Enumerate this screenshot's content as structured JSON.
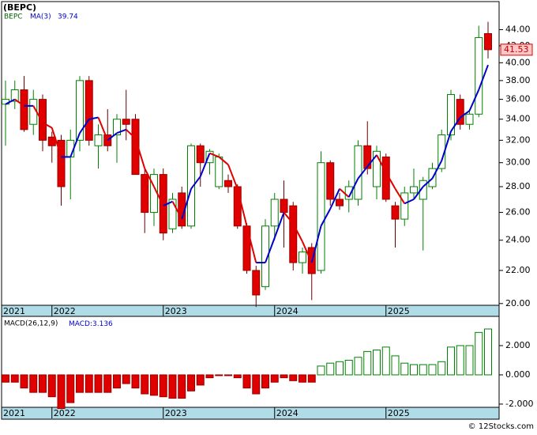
{
  "ticker_title": "(BEPC)",
  "copyright": "© 12Stocks.com",
  "chart_data": [
    {
      "type": "candlestick",
      "categories": [
        "2021",
        null,
        null,
        null,
        null,
        "2022",
        null,
        null,
        null,
        null,
        null,
        null,
        null,
        null,
        null,
        null,
        null,
        "2023",
        null,
        null,
        null,
        null,
        null,
        null,
        null,
        null,
        null,
        null,
        null,
        "2024",
        null,
        null,
        null,
        null,
        null,
        null,
        null,
        null,
        null,
        null,
        null,
        "2025",
        null,
        null,
        null,
        null,
        null,
        null,
        null,
        null,
        null,
        null,
        null
      ],
      "series": [
        {
          "name": "BEPC",
          "up_color": "#008000",
          "down_color": "#e00000",
          "open": [
            35.5,
            35.8,
            37,
            33.5,
            36,
            32.3,
            32,
            30.5,
            32,
            38,
            31.5,
            32.5,
            32.5,
            34,
            34,
            29,
            26,
            29,
            24.8,
            27.5,
            25,
            31.5,
            30,
            28,
            28.5,
            28,
            25,
            22,
            21,
            25,
            27,
            26.5,
            22.5,
            23.5,
            22,
            30,
            27,
            27,
            27,
            31.5,
            28,
            30.5,
            26.5,
            25.5,
            27.5,
            27,
            28,
            29.5,
            32.5,
            36,
            33.5,
            34.5,
            43.5
          ],
          "high": [
            38,
            38,
            38.5,
            37,
            36.5,
            32.8,
            32.5,
            33,
            38.5,
            38.5,
            33.5,
            35,
            34.5,
            37,
            34.5,
            29.5,
            29.5,
            29.5,
            27.5,
            28,
            31.7,
            31.7,
            31.2,
            30.8,
            29,
            28.2,
            25.2,
            22.3,
            25.5,
            27.5,
            28.5,
            26.8,
            23.5,
            23.8,
            31,
            30.2,
            27.5,
            28.5,
            32,
            33.8,
            31.5,
            30.8,
            26.8,
            28,
            29.5,
            28.8,
            30,
            33,
            37,
            36.5,
            35,
            44.5,
            45
          ],
          "low": [
            31.5,
            35,
            32.8,
            32.5,
            31,
            30,
            26.5,
            27,
            31,
            31.5,
            29.5,
            31,
            30,
            32,
            29,
            24.5,
            25,
            24,
            24.5,
            24.8,
            24.8,
            28,
            29,
            27.8,
            27.5,
            24.8,
            21.8,
            19.8,
            20.8,
            24,
            23.5,
            22,
            21.8,
            20.2,
            21.8,
            26.5,
            26.2,
            26,
            26.5,
            29,
            27,
            26.8,
            23.5,
            25,
            27,
            23.3,
            27.8,
            29.2,
            32,
            33,
            33,
            34.2,
            40.5
          ],
          "close": [
            36,
            37,
            33,
            36,
            32,
            31.5,
            28,
            32,
            38,
            32,
            32.5,
            31.5,
            34,
            33.5,
            29,
            26,
            29,
            24.5,
            27,
            25,
            31.5,
            30,
            31,
            30.5,
            28,
            25,
            22,
            20.5,
            25,
            27,
            26,
            22.5,
            23.2,
            21.8,
            30,
            27,
            26.5,
            28,
            31.5,
            29.5,
            31,
            27,
            25.5,
            27.5,
            28,
            28.5,
            29.5,
            32.5,
            36.5,
            33.5,
            34.5,
            43,
            41.53
          ]
        },
        {
          "name": "MA(3)",
          "rise_color": "#0000cc",
          "fall_color": "#e00000",
          "values": [
            35.5,
            36,
            35.33,
            35.33,
            33.67,
            33.17,
            30.5,
            30.5,
            32.67,
            34,
            34.17,
            32,
            32.67,
            33,
            32.17,
            29.5,
            28,
            26.5,
            26.83,
            25.5,
            27.83,
            28.83,
            30.83,
            30.5,
            29.83,
            27.83,
            25,
            22.5,
            22.5,
            24.17,
            26,
            25.17,
            23.9,
            22.5,
            25,
            26.27,
            27.83,
            27.17,
            28.67,
            29.67,
            30.67,
            29.17,
            27.83,
            26.67,
            27,
            28,
            28.67,
            30.17,
            32.83,
            34.17,
            34.83,
            37,
            39.74
          ]
        }
      ],
      "log_scale": true,
      "ylim": [
        19.9,
        47.7
      ],
      "yticks": [
        {
          "value": 20,
          "label": "20.00"
        },
        {
          "value": 22,
          "label": "22.00"
        },
        {
          "value": 24,
          "label": "24.00"
        },
        {
          "value": 26,
          "label": "26.00"
        },
        {
          "value": 28,
          "label": "28.00"
        },
        {
          "value": 30,
          "label": "30.00"
        },
        {
          "value": 32,
          "label": "32.00"
        },
        {
          "value": 34,
          "label": "34.00"
        },
        {
          "value": 36,
          "label": "36.00"
        },
        {
          "value": 38,
          "label": "38.00"
        },
        {
          "value": 40,
          "label": "40.00"
        },
        {
          "value": 42,
          "label": "42.00"
        },
        {
          "value": 44,
          "label": "44.00"
        }
      ]
    },
    {
      "type": "bar",
      "name": "MACD(26,12,9)",
      "value_name": "MACD:",
      "categories": [
        "2021",
        null,
        null,
        null,
        null,
        "2022",
        null,
        null,
        null,
        null,
        null,
        null,
        null,
        null,
        null,
        null,
        null,
        "2023",
        null,
        null,
        null,
        null,
        null,
        null,
        null,
        null,
        null,
        null,
        null,
        "2024",
        null,
        null,
        null,
        null,
        null,
        null,
        null,
        null,
        null,
        null,
        null,
        "2025",
        null,
        null,
        null,
        null,
        null,
        null,
        null,
        null,
        null,
        null,
        null
      ],
      "up_color": "#008000",
      "down_color": "#e00000",
      "values": [
        -0.5,
        -0.5,
        -0.9,
        -1.2,
        -1.2,
        -1.5,
        -2.3,
        -1.9,
        -1.2,
        -1.2,
        -1.2,
        -1.2,
        -0.9,
        -0.6,
        -0.9,
        -1.3,
        -1.4,
        -1.5,
        -1.6,
        -1.6,
        -1.1,
        -0.7,
        -0.2,
        -0.05,
        -0.05,
        -0.2,
        -0.9,
        -1.3,
        -0.9,
        -0.5,
        -0.2,
        -0.4,
        -0.5,
        -0.5,
        0.6,
        0.8,
        0.9,
        1.0,
        1.2,
        1.6,
        1.7,
        1.9,
        1.3,
        0.8,
        0.7,
        0.7,
        0.7,
        0.9,
        1.9,
        2.0,
        2.0,
        2.9,
        3.136
      ],
      "ylim": [
        -2.22,
        4.0
      ],
      "yticks": [
        {
          "value": -2,
          "label": "-2.000"
        },
        {
          "value": 0,
          "label": "0.000"
        },
        {
          "value": 2,
          "label": "2.000"
        }
      ]
    }
  ]
}
